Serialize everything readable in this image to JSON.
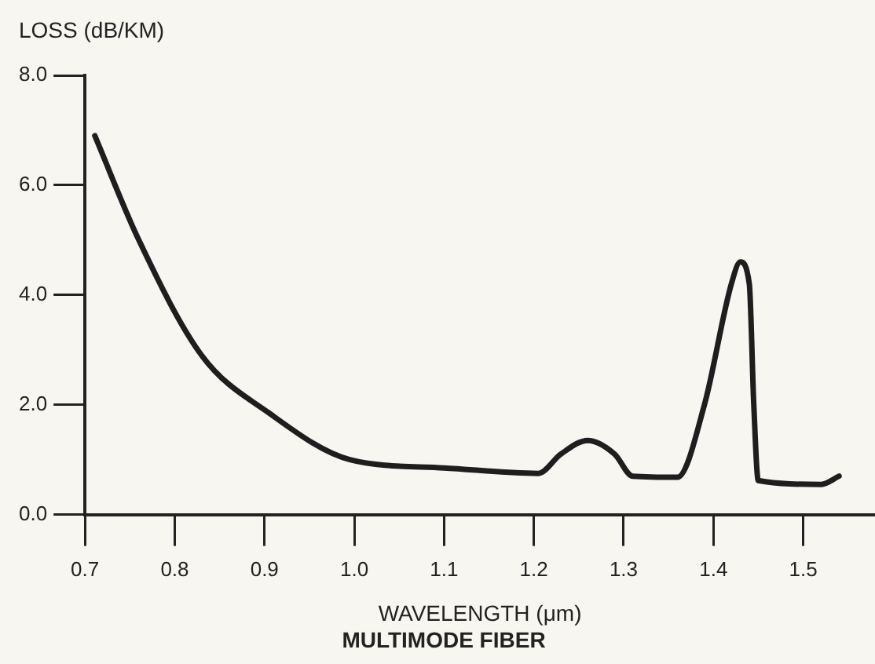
{
  "chart_data": {
    "type": "line",
    "title": "MULTIMODE FIBER",
    "xlabel": "WAVELENGTH (μm)",
    "ylabel": "LOSS (dB/KM)",
    "x": [
      0.711,
      0.76,
      0.83,
      0.905,
      0.995,
      1.1,
      1.205,
      1.23,
      1.26,
      1.29,
      1.31,
      1.36,
      1.39,
      1.42,
      1.43,
      1.44,
      1.445,
      1.45,
      1.52,
      1.54
    ],
    "series": [
      {
        "color": "#1e1e1e",
        "values": [
          6.9,
          5.0,
          2.9,
          1.85,
          1.0,
          0.85,
          0.75,
          1.1,
          1.35,
          1.1,
          0.7,
          0.68,
          2.0,
          4.2,
          4.6,
          4.2,
          2.0,
          0.62,
          0.55,
          0.7
        ]
      }
    ],
    "xlim": [
      0.7,
      1.58
    ],
    "ylim": [
      0,
      8
    ],
    "xticks": [
      0.7,
      0.8,
      0.9,
      {
        "value": 1,
        "label": "1.0"
      },
      1.1,
      1.2,
      1.3,
      1.4,
      1.5
    ],
    "yticks": [
      {
        "value": 0,
        "label": "0.0"
      },
      {
        "value": 2,
        "label": "2.0"
      },
      {
        "value": 4,
        "label": "4.0"
      },
      {
        "value": 6,
        "label": "6.0"
      },
      {
        "value": 8,
        "label": "8.0"
      }
    ],
    "grid": false,
    "legend": false,
    "marker": "none",
    "line_style": "solid"
  }
}
